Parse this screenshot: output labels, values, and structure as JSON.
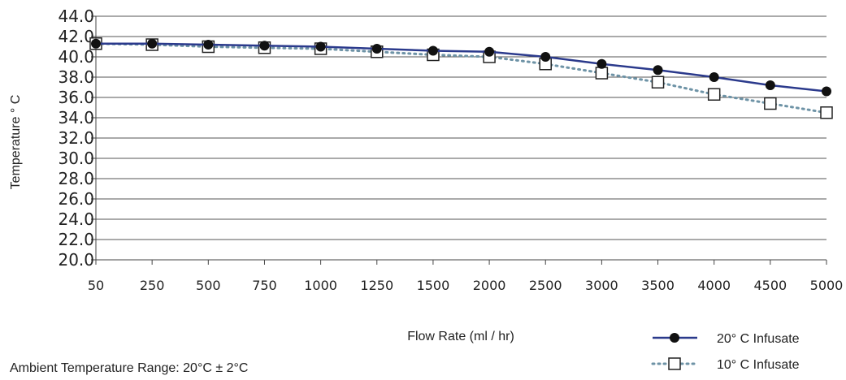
{
  "chart_data": {
    "type": "line",
    "xlabel": "Flow Rate (ml / hr)",
    "ylabel": "Temperature ° C",
    "categories": [
      "50",
      "250",
      "500",
      "750",
      "1000",
      "1250",
      "1500",
      "2000",
      "2500",
      "3000",
      "3500",
      "4000",
      "4500",
      "5000"
    ],
    "ylim": [
      20.0,
      44.0
    ],
    "ytick_step": 2.0,
    "yticks": [
      "20.0",
      "22.0",
      "24.0",
      "26.0",
      "28.0",
      "30.0",
      "32.0",
      "34.0",
      "36.0",
      "38.0",
      "40.0",
      "42.0",
      "44.0"
    ],
    "grid": "horizontal",
    "legend": "bottom-right",
    "series": [
      {
        "name": "20° C  Infusate",
        "values": [
          41.3,
          41.3,
          41.2,
          41.1,
          41.0,
          40.8,
          40.6,
          40.5,
          40.0,
          39.3,
          38.7,
          38.0,
          37.2,
          36.6
        ],
        "color": "#2b3a8c",
        "marker": "circle",
        "line": "solid"
      },
      {
        "name": "10° C  Infusate",
        "values": [
          41.3,
          41.2,
          41.0,
          40.9,
          40.8,
          40.5,
          40.2,
          40.0,
          39.3,
          38.4,
          37.5,
          36.3,
          35.4,
          34.5
        ],
        "color": "#6e93a6",
        "marker": "square",
        "line": "dotted"
      }
    ],
    "note": "Ambient Temperature Range: 20°C ± 2°C"
  }
}
